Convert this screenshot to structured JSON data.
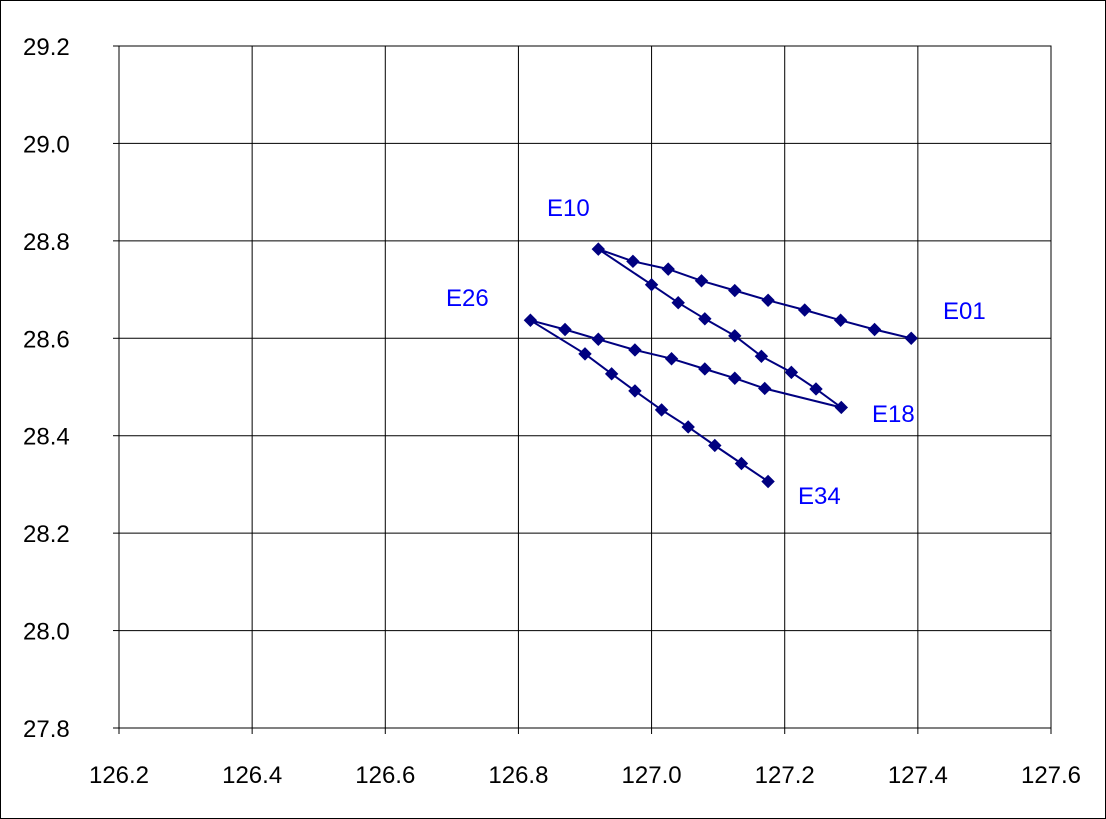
{
  "chart_data": {
    "type": "line",
    "title": "",
    "xlabel": "",
    "ylabel": "",
    "xlim": [
      126.2,
      127.6
    ],
    "ylim": [
      27.8,
      29.2
    ],
    "x_ticks": [
      "126.2",
      "126.4",
      "126.6",
      "126.8",
      "127.0",
      "127.2",
      "127.4",
      "127.6"
    ],
    "y_ticks": [
      "27.8",
      "28.0",
      "28.2",
      "28.4",
      "28.6",
      "28.8",
      "29.0",
      "29.2"
    ],
    "grid": true,
    "legend": false,
    "series": [
      {
        "color": "#000080",
        "marker": "diamond",
        "points": [
          [
            127.39,
            28.6
          ],
          [
            127.335,
            28.618
          ],
          [
            127.284,
            28.637
          ],
          [
            127.23,
            28.658
          ],
          [
            127.175,
            28.678
          ],
          [
            127.125,
            28.698
          ],
          [
            127.075,
            28.718
          ],
          [
            127.025,
            28.742
          ],
          [
            126.972,
            28.758
          ],
          [
            126.92,
            28.783
          ],
          [
            127.0,
            28.71
          ],
          [
            127.04,
            28.673
          ],
          [
            127.08,
            28.64
          ],
          [
            127.125,
            28.605
          ],
          [
            127.165,
            28.563
          ],
          [
            127.21,
            28.53
          ],
          [
            127.247,
            28.496
          ],
          [
            127.285,
            28.458
          ],
          [
            127.17,
            28.497
          ],
          [
            127.125,
            28.518
          ],
          [
            127.08,
            28.537
          ],
          [
            127.03,
            28.558
          ],
          [
            126.975,
            28.576
          ],
          [
            126.92,
            28.598
          ],
          [
            126.87,
            28.618
          ],
          [
            126.818,
            28.637
          ],
          [
            126.9,
            28.568
          ],
          [
            126.94,
            28.527
          ],
          [
            126.975,
            28.492
          ],
          [
            127.015,
            28.453
          ],
          [
            127.055,
            28.418
          ],
          [
            127.095,
            28.38
          ],
          [
            127.135,
            28.343
          ],
          [
            127.175,
            28.306
          ]
        ]
      }
    ],
    "annotations": [
      {
        "text": "E01",
        "color": "#0000ff"
      },
      {
        "text": "E10",
        "color": "#0000ff"
      },
      {
        "text": "E18",
        "color": "#0000ff"
      },
      {
        "text": "E26",
        "color": "#0000ff"
      },
      {
        "text": "E34",
        "color": "#0000ff"
      }
    ]
  }
}
